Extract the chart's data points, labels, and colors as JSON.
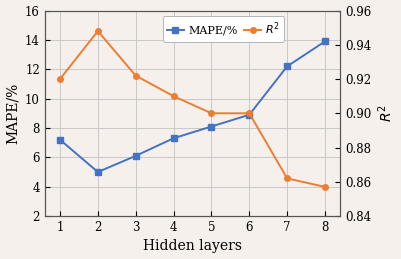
{
  "hidden_layers": [
    1,
    2,
    3,
    4,
    5,
    6,
    7,
    8
  ],
  "mape": [
    7.2,
    5.0,
    6.1,
    7.3,
    8.1,
    8.9,
    12.2,
    13.9
  ],
  "r2": [
    0.92,
    0.948,
    0.922,
    0.91,
    0.9,
    0.9,
    0.862,
    0.857
  ],
  "mape_color": "#4472c4",
  "r2_color": "#ed7d31",
  "mape_label": "MAPE/%",
  "r2_label": "$R^2$",
  "xlabel": "Hidden layers",
  "ylabel_left": "MAPE/%",
  "ylabel_right": "$R^2$",
  "ylim_left": [
    2,
    16
  ],
  "ylim_right": [
    0.84,
    0.96
  ],
  "yticks_left": [
    2,
    4,
    6,
    8,
    10,
    12,
    14,
    16
  ],
  "yticks_right": [
    0.84,
    0.86,
    0.88,
    0.9,
    0.92,
    0.94,
    0.96
  ],
  "xticks": [
    1,
    2,
    3,
    4,
    5,
    6,
    7,
    8
  ],
  "grid_color": "#c8c8c8",
  "background_color": "#f5f0eb",
  "plot_bg_color": "#f5f0eb",
  "marker_size": 4,
  "linewidth": 1.4
}
